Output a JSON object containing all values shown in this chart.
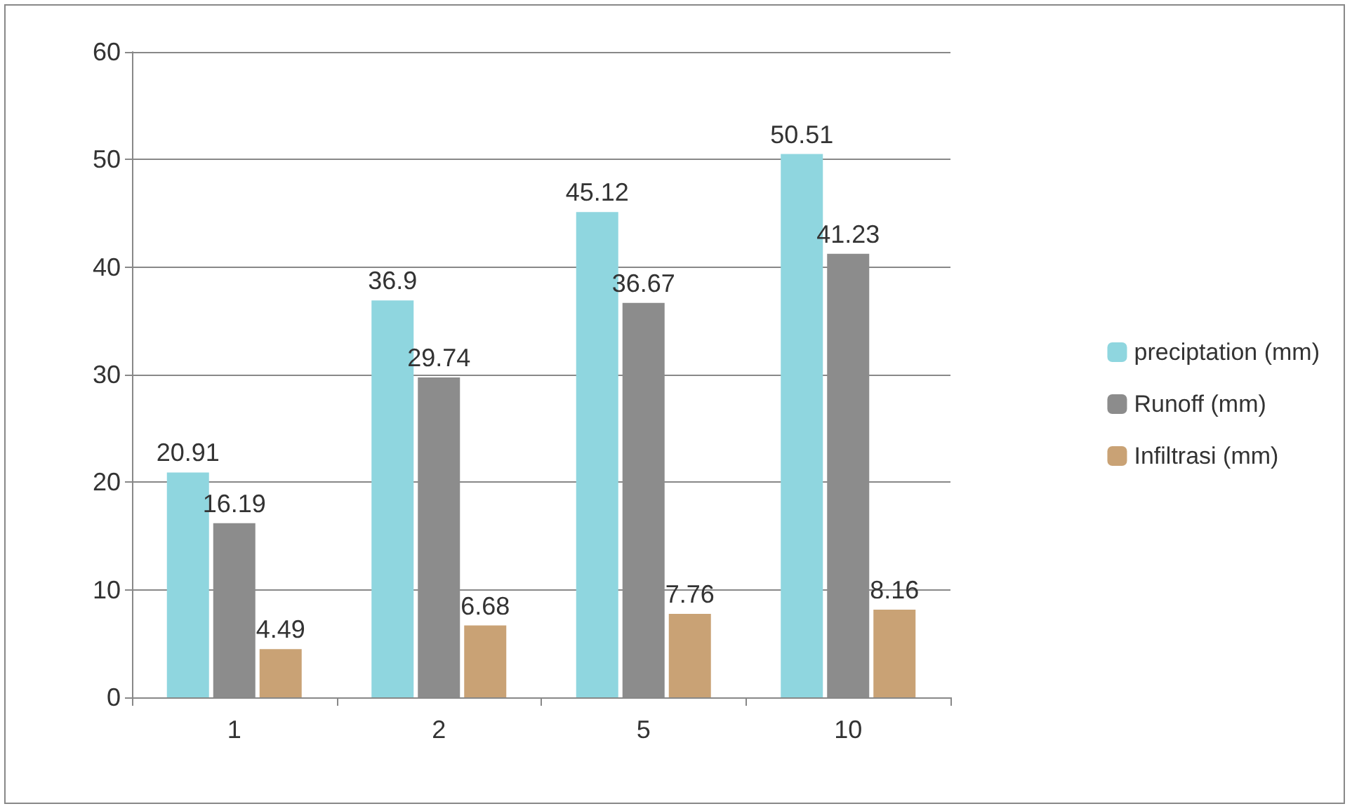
{
  "chart_data": {
    "type": "bar",
    "categories": [
      "1",
      "2",
      "5",
      "10"
    ],
    "series": [
      {
        "name": "preciptation (mm)",
        "color": "#8fd6df",
        "values": [
          20.91,
          36.9,
          45.12,
          50.51
        ]
      },
      {
        "name": "Runoff (mm)",
        "color": "#8c8c8c",
        "values": [
          16.19,
          29.74,
          36.67,
          41.23
        ]
      },
      {
        "name": "Infiltrasi (mm)",
        "color": "#c9a275",
        "values": [
          4.49,
          6.68,
          7.76,
          8.16
        ]
      }
    ],
    "ylim": [
      0,
      60
    ],
    "yticks": [
      0,
      10,
      20,
      30,
      40,
      50,
      60
    ],
    "grid": "y",
    "legend": "right",
    "data_labels": true
  }
}
